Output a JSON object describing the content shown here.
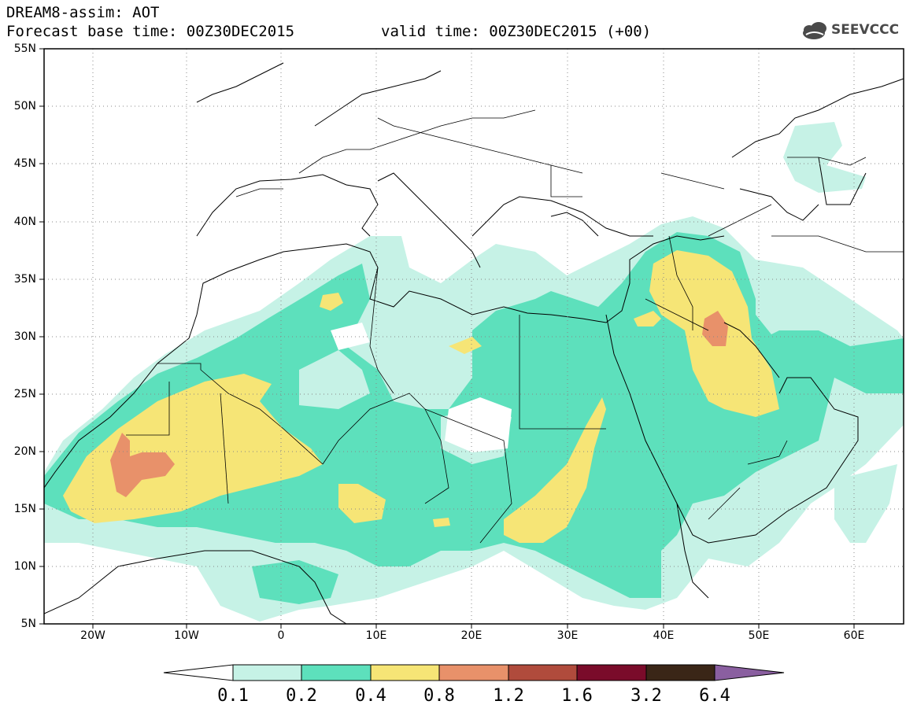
{
  "header": {
    "title_line1": "DREAM8-assim: AOT",
    "title_line2": "Forecast base time: 00Z30DEC2015",
    "valid_time": "valid time: 00Z30DEC2015 (+00)",
    "logo_text": "SEEVCCC"
  },
  "map": {
    "lat_labels": [
      "55N",
      "50N",
      "45N",
      "40N",
      "35N",
      "30N",
      "25N",
      "20N",
      "15N",
      "10N",
      "5N"
    ],
    "lon_labels": [
      "20W",
      "10W",
      "0",
      "10E",
      "20E",
      "30E",
      "40E",
      "50E",
      "60E"
    ],
    "variable": "AOT"
  },
  "colorbar": {
    "labels": [
      "0.1",
      "0.2",
      "0.4",
      "0.8",
      "1.2",
      "1.6",
      "3.2",
      "6.4"
    ],
    "colors": [
      "#ffffff",
      "#c6f2e6",
      "#5de0bc",
      "#f6e576",
      "#e8916a",
      "#b04b3c",
      "#7a0b2a",
      "#3a2617",
      "#8a5fa0"
    ]
  }
}
